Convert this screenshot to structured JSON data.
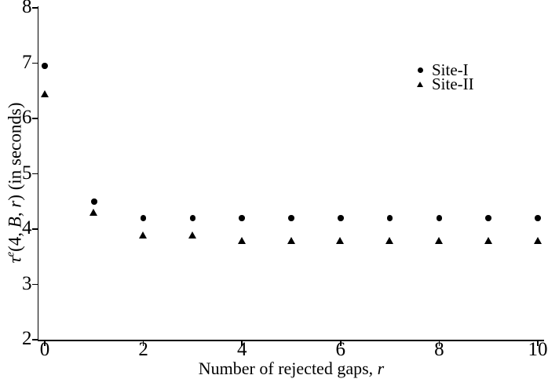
{
  "chart_data": {
    "type": "scatter",
    "xlabel": "Number of rejected gaps, r",
    "ylabel": "τ^e(4, B, r) (in seconds)",
    "xlim": [
      0,
      10
    ],
    "ylim": [
      2,
      8
    ],
    "x_ticks": [
      0,
      2,
      4,
      6,
      8,
      10
    ],
    "y_ticks": [
      2,
      3,
      4,
      5,
      6,
      7,
      8
    ],
    "grid": false,
    "legend_position": "upper-right-inside",
    "x": [
      0,
      1,
      2,
      3,
      4,
      5,
      6,
      7,
      8,
      9,
      10
    ],
    "series": [
      {
        "name": "Site-I",
        "marker": "circle",
        "color": "#000000",
        "values": [
          6.95,
          4.5,
          4.2,
          4.2,
          4.2,
          4.2,
          4.2,
          4.2,
          4.2,
          4.2,
          4.2
        ]
      },
      {
        "name": "Site-II",
        "marker": "triangle",
        "color": "#000000",
        "values": [
          6.45,
          4.3,
          3.9,
          3.9,
          3.8,
          3.8,
          3.8,
          3.8,
          3.8,
          3.8,
          3.8
        ]
      }
    ]
  },
  "labels": {
    "y_tau": "τ",
    "y_sup": "e",
    "y_open": "(4, ",
    "y_B": "B",
    "y_sep": ", ",
    "y_r": "r",
    "y_close": ")",
    "y_units": " (in seconds)",
    "x_text": "Number of rejected gaps, ",
    "x_var": "r"
  },
  "colors": {
    "foreground": "#000000",
    "background": "#ffffff"
  }
}
